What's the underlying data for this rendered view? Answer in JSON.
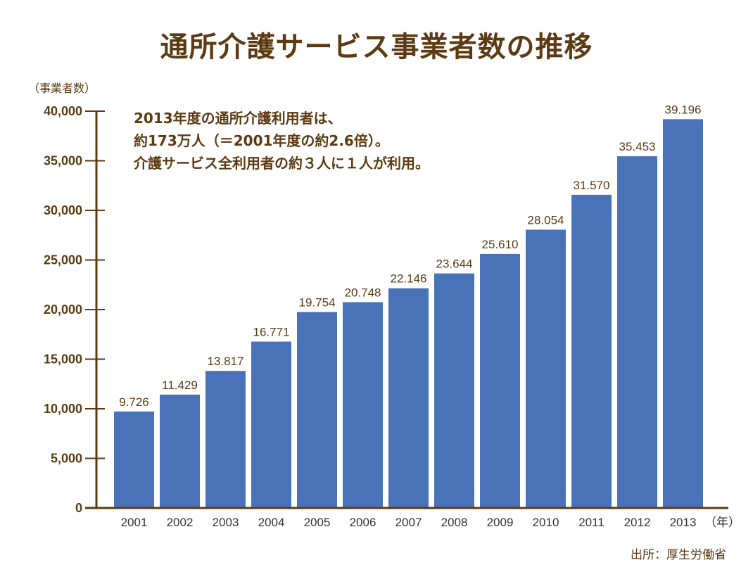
{
  "colors": {
    "bar": "#4A72B8",
    "axis": "#5C3A12",
    "text": "#5C3A12",
    "background": "#FFFFFF"
  },
  "chart_data": {
    "type": "bar",
    "title": "通所介護サービス事業者数の推移",
    "ylabel": "（事業者数）",
    "xlabel": "（年）",
    "ylim": [
      0,
      40000
    ],
    "yticks": [
      0,
      5000,
      10000,
      15000,
      20000,
      25000,
      30000,
      35000,
      40000
    ],
    "ytick_labels": [
      "0",
      "5,000",
      "10,000",
      "15,000",
      "20,000",
      "25,000",
      "30,000",
      "35,000",
      "40,000"
    ],
    "categories": [
      "2001",
      "2002",
      "2003",
      "2004",
      "2005",
      "2006",
      "2007",
      "2008",
      "2009",
      "2010",
      "2011",
      "2012",
      "2013"
    ],
    "values": [
      9726,
      11429,
      13817,
      16771,
      19754,
      20748,
      22146,
      23644,
      25610,
      28054,
      31570,
      35453,
      39196
    ],
    "data_labels": [
      "9.726",
      "11.429",
      "13.817",
      "16.771",
      "19.754",
      "20.748",
      "22.146",
      "23.644",
      "25.610",
      "28.054",
      "31.570",
      "35.453",
      "39.196"
    ],
    "grid": false,
    "legend": "none"
  },
  "annotation": {
    "lines": [
      "2013年度の通所介護利用者は、",
      "約173万人（＝2001年度の約2.6倍）。",
      "介護サービス全利用者の約３人に１人が利用。"
    ]
  },
  "source": "出所：厚生労働省"
}
